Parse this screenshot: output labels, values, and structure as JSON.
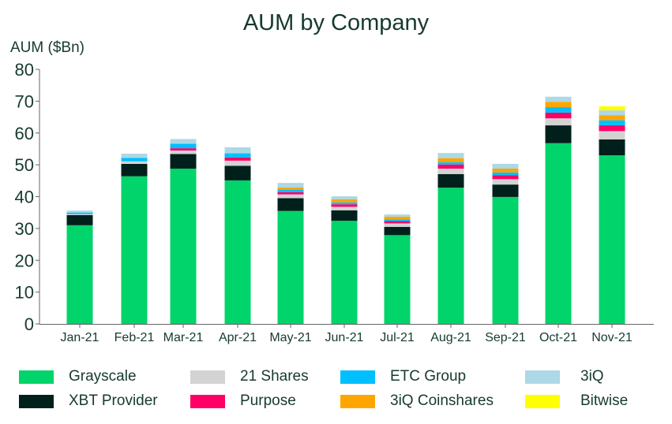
{
  "chart_data": {
    "type": "bar",
    "stacked": true,
    "title": "AUM by Company",
    "xlabel": "",
    "ylabel": "AUM ($Bn)",
    "ylim": [
      0,
      80
    ],
    "yticks": [
      0,
      10,
      20,
      30,
      40,
      50,
      60,
      70,
      80
    ],
    "grid": false,
    "legend_position": "bottom",
    "categories": [
      "Jan-21",
      "Feb-21",
      "Mar-21",
      "Apr-21",
      "May-21",
      "Jun-21",
      "Jul-21",
      "Aug-21",
      "Sep-21",
      "Oct-21",
      "Nov-21"
    ],
    "series": [
      {
        "name": "Grayscale",
        "color": "#00d46a",
        "values": [
          31.0,
          46.4,
          48.8,
          45.1,
          35.5,
          32.4,
          27.9,
          42.8,
          39.9,
          56.8,
          53.0
        ]
      },
      {
        "name": "XBT Provider",
        "color": "#02201b",
        "values": [
          3.2,
          3.9,
          4.6,
          4.6,
          4.0,
          3.3,
          2.6,
          4.3,
          3.9,
          5.6,
          5.0
        ]
      },
      {
        "name": "21 Shares",
        "color": "#d3d3d3",
        "values": [
          0.3,
          0.8,
          1.1,
          1.6,
          1.2,
          1.1,
          1.1,
          1.7,
          1.7,
          2.2,
          2.6
        ]
      },
      {
        "name": "Purpose",
        "color": "#ff0066",
        "values": [
          0.0,
          0.0,
          0.7,
          1.0,
          0.7,
          0.8,
          0.7,
          1.3,
          1.2,
          1.8,
          1.8
        ]
      },
      {
        "name": "ETC Group",
        "color": "#00bfff",
        "values": [
          0.5,
          1.1,
          1.4,
          1.3,
          0.8,
          0.6,
          0.5,
          0.7,
          0.9,
          1.7,
          1.6
        ]
      },
      {
        "name": "3iQ Coinshares",
        "color": "#ffa500",
        "values": [
          0.0,
          0.0,
          0.0,
          0.0,
          0.7,
          1.0,
          0.9,
          1.3,
          1.2,
          1.7,
          1.6
        ]
      },
      {
        "name": "3iQ",
        "color": "#add8e6",
        "values": [
          0.6,
          1.3,
          1.5,
          1.9,
          1.4,
          0.9,
          0.7,
          1.6,
          1.5,
          1.6,
          1.5
        ]
      },
      {
        "name": "Bitwise",
        "color": "#ffff00",
        "values": [
          0,
          0,
          0,
          0,
          0,
          0,
          0,
          0,
          0,
          0,
          1.3
        ]
      }
    ]
  },
  "legend": {
    "items": [
      {
        "label": "Grayscale",
        "color": "#00d46a"
      },
      {
        "label": "XBT Provider",
        "color": "#02201b"
      },
      {
        "label": "21 Shares",
        "color": "#d3d3d3"
      },
      {
        "label": "Purpose",
        "color": "#ff0066"
      },
      {
        "label": "ETC Group",
        "color": "#00bfff"
      },
      {
        "label": "3iQ Coinshares",
        "color": "#ffa500"
      },
      {
        "label": "3iQ",
        "color": "#add8e6"
      },
      {
        "label": "Bitwise",
        "color": "#ffff00"
      }
    ]
  }
}
